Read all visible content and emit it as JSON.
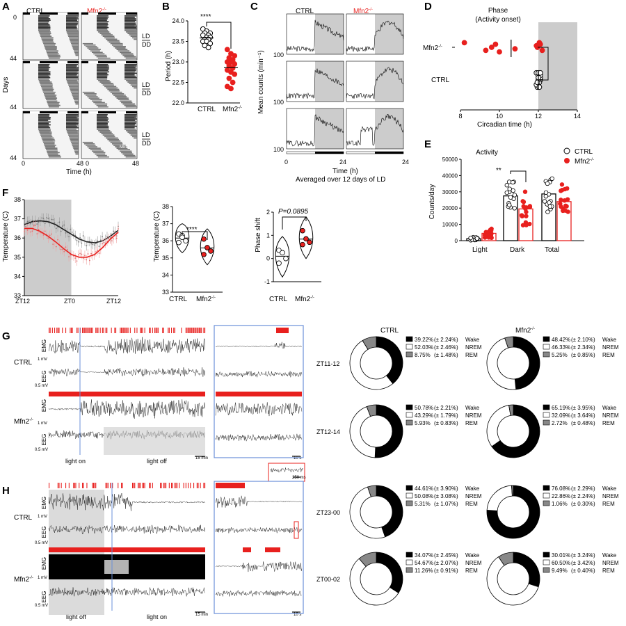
{
  "panel_labels": [
    "A",
    "B",
    "C",
    "D",
    "E",
    "F",
    "G",
    "H"
  ],
  "colors": {
    "ctrl": "#000000",
    "mfn2": "#e8201e",
    "shade": "#cccccc",
    "box": "#6a8fd8"
  },
  "groups": {
    "ctrl": "CTRL",
    "mfn2": "Mfn2",
    "sup": "-/-"
  },
  "panelA": {
    "ylabel": "Days",
    "y0": "0",
    "y44": "44",
    "x0": "0",
    "x48": "48",
    "xlabel": "Time (h)",
    "ld": "LD",
    "dd": "DD",
    "label_bottom": "Mfn2"
  },
  "panelC": {
    "ylabel": "Mean counts (min⁻¹)",
    "ytick0": "0",
    "ytick100": "100",
    "x0": "0",
    "x24": "24",
    "xlabel": "Time (h)",
    "subtitle": "Averaged over 12 days of LD"
  },
  "panelG": {
    "emg": "EMG",
    "eeg": "EEG",
    "emg_scale": "1 mV",
    "eeg_scale": "0.5 mV",
    "light_on": "light on",
    "light_off": "light off",
    "time_scale": "15 min",
    "zoom_scale": "10 s"
  },
  "panelH": {
    "light_off": "light off",
    "light_on": "light on",
    "time_scale": "15 min",
    "zoom_scale": "10 s",
    "inset_scale": "250 ms"
  },
  "pie_legend": {
    "wake": "Wake",
    "nrem": "NREM",
    "rem": "REM"
  },
  "chart_data": [
    {
      "panel": "B",
      "type": "scatter",
      "title": "",
      "ylabel": "Period (h)",
      "ylim": [
        22.0,
        24.0
      ],
      "yticks": [
        "22.0",
        "22.5",
        "23.0",
        "23.5",
        "24.0"
      ],
      "categories": [
        "CTRL",
        "Mfn2-/-"
      ],
      "series": [
        {
          "name": "CTRL",
          "values": [
            23.8,
            23.75,
            23.7,
            23.7,
            23.65,
            23.65,
            23.6,
            23.6,
            23.55,
            23.55,
            23.5,
            23.5,
            23.45,
            23.4,
            23.35
          ]
        },
        {
          "name": "Mfn2-/-",
          "values": [
            23.3,
            23.2,
            23.15,
            23.1,
            23.05,
            23.0,
            23.0,
            22.95,
            22.9,
            22.85,
            22.8,
            22.75,
            22.7,
            22.6,
            22.5,
            22.4,
            22.35
          ]
        }
      ],
      "significance": "****"
    },
    {
      "panel": "D",
      "type": "scatter",
      "title": "Phase",
      "subtitle": "(Activity onset)",
      "xlabel": "Circadian time (h)",
      "xlim": [
        8,
        14
      ],
      "xticks": [
        "8",
        "10",
        "12",
        "14"
      ],
      "categories": [
        "Mfn2-/-",
        "CTRL"
      ],
      "series": [
        {
          "name": "Mfn2-/-",
          "values": [
            8.2,
            9.3,
            9.6,
            9.8,
            10.0,
            10.8,
            11.9,
            12.05,
            12.2,
            11.95,
            12.1
          ]
        },
        {
          "name": "CTRL",
          "values": [
            11.9,
            12.0,
            12.1,
            12.0,
            11.95,
            12.05,
            12.1,
            12.0,
            11.9,
            12.0,
            12.1,
            12.05,
            11.95,
            12.0,
            12.1
          ]
        }
      ],
      "significance": "****"
    },
    {
      "panel": "E",
      "type": "bar",
      "title": "Activity",
      "ylabel": "Counts/day",
      "ylim": [
        0,
        50000
      ],
      "yticks": [
        "0",
        "10000",
        "20000",
        "30000",
        "40000",
        "50000"
      ],
      "categories": [
        "Light",
        "Dark",
        "Total"
      ],
      "series": [
        {
          "name": "CTRL",
          "values": [
            1200,
            27500,
            28700
          ]
        },
        {
          "name": "Mfn2-/-",
          "values": [
            4500,
            19500,
            24000
          ]
        }
      ],
      "significance": "**"
    },
    {
      "panel": "F",
      "type": "line",
      "ylabel": "Temperature (C)",
      "ylim": [
        33,
        38
      ],
      "yticks": [
        "33",
        "34",
        "35",
        "36",
        "37",
        "38"
      ],
      "xticks": [
        "ZT12",
        "ZT0",
        "ZT12"
      ],
      "series": [
        {
          "name": "CTRL",
          "values": [
            36.7,
            36.85,
            36.9,
            36.85,
            36.7,
            36.45,
            36.2,
            35.95,
            35.8,
            35.75,
            35.85,
            36.1,
            36.4
          ]
        },
        {
          "name": "Mfn2-/-",
          "values": [
            36.5,
            36.5,
            36.35,
            36.1,
            35.8,
            35.45,
            35.15,
            35.0,
            35.0,
            35.15,
            35.5,
            35.95,
            36.3
          ]
        }
      ]
    },
    {
      "panel": "F2",
      "type": "scatter",
      "ylabel": "Temperature (C)",
      "ylim": [
        33,
        38
      ],
      "yticks": [
        "33",
        "34",
        "35",
        "36",
        "37",
        "38"
      ],
      "categories": [
        "CTRL",
        "Mfn2-/-"
      ],
      "series": [
        {
          "name": "CTRL",
          "values": [
            36.4,
            36.3,
            36.0,
            35.9,
            36.2
          ]
        },
        {
          "name": "Mfn2-/-",
          "values": [
            36.1,
            35.6,
            35.4,
            35.2,
            35.6
          ]
        }
      ],
      "significance": "****"
    },
    {
      "panel": "F3",
      "type": "scatter",
      "ylabel": "Phase shift",
      "ylim": [
        -1,
        2
      ],
      "yticks": [
        "-1",
        "0",
        "1",
        "2"
      ],
      "categories": [
        "CTRL",
        "Mfn2-/-"
      ],
      "series": [
        {
          "name": "CTRL",
          "values": [
            0.35,
            0.25,
            0.0,
            -0.2
          ]
        },
        {
          "name": "Mfn2-/-",
          "values": [
            1.2,
            0.85,
            0.7,
            0.6
          ]
        }
      ],
      "significance": "P=0.0895"
    },
    {
      "panel": "G-H",
      "type": "pie",
      "rows": [
        {
          "label": "ZT11-12",
          "ctrl": {
            "wake": "39.22%",
            "wake_sem": "(± 2.24%)",
            "nrem": "52.03%",
            "nrem_sem": "(± 2.46%)",
            "rem": "8.75%",
            "rem_sem": "(± 1.48%)",
            "values": [
              39.22,
              52.03,
              8.75
            ]
          },
          "mfn2": {
            "wake": "48.42%",
            "wake_sem": "(± 2.10%)",
            "nrem": "46.33%",
            "nrem_sem": "(± 2.34%)",
            "rem": "5.25%",
            "rem_sem": "(± 0.85%)",
            "values": [
              48.42,
              46.33,
              5.25
            ]
          }
        },
        {
          "label": "ZT12-14",
          "ctrl": {
            "wake": "50.78%",
            "wake_sem": "(± 2.21%)",
            "nrem": "43.29%",
            "nrem_sem": "(± 1.79%)",
            "rem": "5.93%",
            "rem_sem": "(± 0.83%)",
            "values": [
              50.78,
              43.29,
              5.93
            ]
          },
          "mfn2": {
            "wake": "65.19%",
            "wake_sem": "(± 3.95%)",
            "nrem": "32.09%",
            "nrem_sem": "(± 3.64%)",
            "rem": "2.72%",
            "rem_sem": "(± 0.48%)",
            "values": [
              65.19,
              32.09,
              2.72
            ]
          }
        },
        {
          "label": "ZT23-00",
          "ctrl": {
            "wake": "44.61%",
            "wake_sem": "(± 3.90%)",
            "nrem": "50.08%",
            "nrem_sem": "(± 3.08%)",
            "rem": "5.31%",
            "rem_sem": "(± 1.07%)",
            "values": [
              44.61,
              50.08,
              5.31
            ]
          },
          "mfn2": {
            "wake": "76.08%",
            "wake_sem": "(± 2.29%)",
            "nrem": "22.86%",
            "nrem_sem": "(± 2.24%)",
            "rem": "1.06%",
            "rem_sem": "(± 0.30%)",
            "values": [
              76.08,
              22.86,
              1.06
            ]
          }
        },
        {
          "label": "ZT00-02",
          "ctrl": {
            "wake": "34.07%",
            "wake_sem": "(± 2.45%)",
            "nrem": "54.67%",
            "nrem_sem": "(± 2.07%)",
            "rem": "11.26%",
            "rem_sem": "(± 0.91%)",
            "values": [
              34.07,
              54.67,
              11.26
            ]
          },
          "mfn2": {
            "wake": "30.01%",
            "wake_sem": "(± 3.24%)",
            "nrem": "60.50%",
            "nrem_sem": "(± 3.42%)",
            "rem": "9.49%",
            "rem_sem": "(± 0.40%)",
            "values": [
              30.01,
              60.5,
              9.49
            ]
          }
        }
      ]
    }
  ]
}
